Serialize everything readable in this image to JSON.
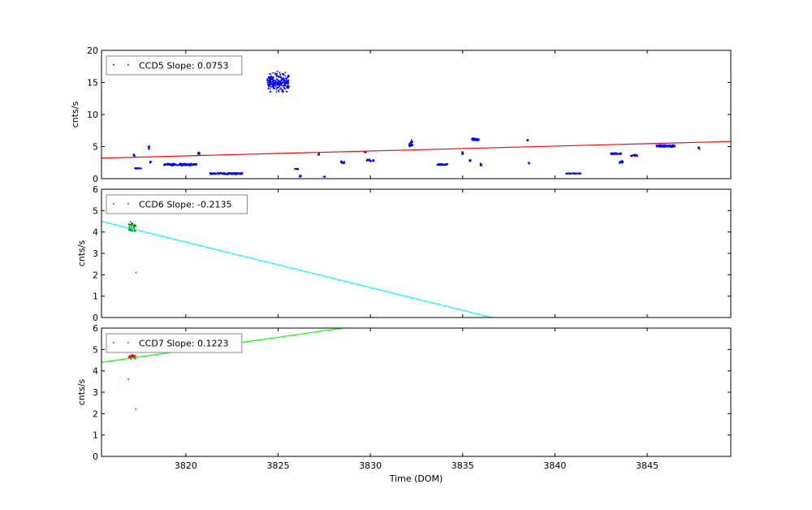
{
  "chart_data": {
    "type": "scatter",
    "xlabel": "Time (DOM)",
    "xlim": [
      3815.43,
      3849.53
    ],
    "xticks": [
      3820,
      3825,
      3830,
      3835,
      3840,
      3845
    ],
    "panels": [
      {
        "name": "ccd5",
        "legend": "CCD5 Slope: 0.0753",
        "legend_placement": "top-left",
        "ylabel": "cnts/s",
        "ylim": [
          0,
          20
        ],
        "yticks": [
          0,
          5,
          10,
          15,
          20
        ],
        "point_color": "#0000ff",
        "fit_color": "#ff0000",
        "fit_line": [
          [
            3815.43,
            3.2
          ],
          [
            3849.53,
            5.8
          ]
        ],
        "clusters": [
          [
            3817.2,
            0.05,
            3.6,
            0.3,
            8
          ],
          [
            3817.4,
            0.2,
            1.6,
            0.15,
            20
          ],
          [
            3818.0,
            0.05,
            4.8,
            0.4,
            10
          ],
          [
            3818.1,
            0.05,
            2.6,
            0.2,
            8
          ],
          [
            3819.7,
            0.9,
            2.2,
            0.25,
            150
          ],
          [
            3820.7,
            0.05,
            4.0,
            0.3,
            12
          ],
          [
            3822.2,
            0.9,
            0.8,
            0.2,
            150
          ],
          [
            3825.0,
            0.6,
            15,
            2,
            250
          ],
          [
            3826.0,
            0.1,
            1.5,
            0.1,
            15
          ],
          [
            3826.2,
            0.05,
            0.4,
            0.3,
            8
          ],
          [
            3827.2,
            0.05,
            3.8,
            0.3,
            5
          ],
          [
            3827.5,
            0.05,
            0.3,
            0.1,
            5
          ],
          [
            3828.5,
            0.1,
            2.5,
            0.3,
            20
          ],
          [
            3829.7,
            0.1,
            4.1,
            0.2,
            5
          ],
          [
            3830.0,
            0.2,
            2.8,
            0.3,
            30
          ],
          [
            3832.2,
            0.1,
            5.5,
            1,
            25
          ],
          [
            3833.9,
            0.3,
            2.2,
            0.2,
            50
          ],
          [
            3835.0,
            0.05,
            4.0,
            0.3,
            8
          ],
          [
            3835.4,
            0.05,
            2.8,
            0.2,
            8
          ],
          [
            3835.7,
            0.2,
            6.1,
            0.3,
            50
          ],
          [
            3836.0,
            0.05,
            2.2,
            0.3,
            8
          ],
          [
            3838.5,
            0.05,
            6.0,
            0.2,
            8
          ],
          [
            3838.6,
            0.05,
            2.4,
            0.2,
            6
          ],
          [
            3841.0,
            0.4,
            0.8,
            0.1,
            60
          ],
          [
            3843.3,
            0.3,
            3.9,
            0.2,
            50
          ],
          [
            3843.6,
            0.1,
            2.6,
            0.3,
            15
          ],
          [
            3844.3,
            0.2,
            3.6,
            0.2,
            25
          ],
          [
            3846.0,
            0.5,
            5.1,
            0.3,
            120
          ],
          [
            3847.8,
            0.05,
            4.8,
            0.3,
            8
          ]
        ]
      },
      {
        "name": "ccd6",
        "legend": "CCD6 Slope: -0.2135",
        "legend_placement": "top-left",
        "ylabel": "cnts/s",
        "ylim": [
          0,
          6
        ],
        "yticks": [
          0,
          1,
          2,
          3,
          4,
          5,
          6
        ],
        "point_color": "#008000",
        "fit_color": "#00ffff",
        "fit_line": [
          [
            3815.43,
            4.5
          ],
          [
            3836.6,
            0
          ]
        ],
        "clusters": [
          [
            3817.1,
            0.2,
            4.2,
            0.4,
            40
          ],
          [
            3817.3,
            0.01,
            2.1,
            0.01,
            1
          ]
        ]
      },
      {
        "name": "ccd7",
        "legend": "CCD7 Slope: 0.1223",
        "legend_placement": "top-left",
        "ylabel": "cnts/s",
        "ylim": [
          0,
          6
        ],
        "yticks": [
          0,
          1,
          2,
          3,
          4,
          5,
          6
        ],
        "point_color": "#ff0000",
        "fit_color": "#00ff00",
        "fit_line": [
          [
            3815.43,
            4.4
          ],
          [
            3828.5,
            6.0
          ]
        ],
        "clusters": [
          [
            3817.1,
            0.2,
            4.65,
            0.15,
            40
          ],
          [
            3816.9,
            0.01,
            3.6,
            0.01,
            1
          ],
          [
            3817.3,
            0.01,
            2.2,
            0.01,
            1
          ]
        ]
      }
    ]
  }
}
